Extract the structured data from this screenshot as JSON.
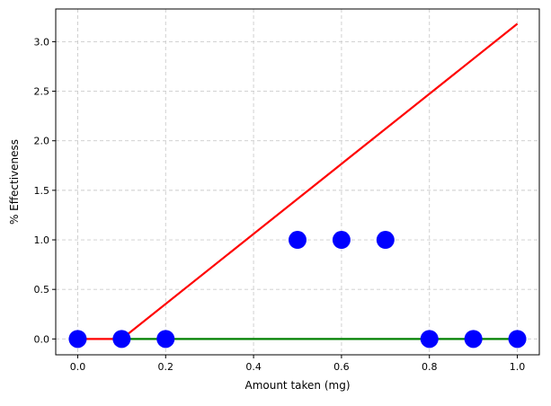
{
  "chart_data": {
    "type": "scatter",
    "title": "",
    "xlabel": "Amount taken (mg)",
    "ylabel": "% Effectiveness",
    "xlim": [
      -0.05,
      1.05
    ],
    "ylim": [
      -0.16,
      3.33
    ],
    "xticks": [
      0.0,
      0.2,
      0.4,
      0.6,
      0.8,
      1.0
    ],
    "xtick_labels": [
      "0.0",
      "0.2",
      "0.4",
      "0.6",
      "0.8",
      "1.0"
    ],
    "yticks": [
      0.0,
      0.5,
      1.0,
      1.5,
      2.0,
      2.5,
      3.0
    ],
    "ytick_labels": [
      "0.0",
      "0.5",
      "1.0",
      "1.5",
      "2.0",
      "2.5",
      "3.0"
    ],
    "grid": true,
    "legend": "none",
    "points": {
      "x": [
        0.0,
        0.1,
        0.2,
        0.5,
        0.6,
        0.7,
        0.8,
        0.9,
        1.0
      ],
      "y": [
        0,
        0,
        0,
        1,
        1,
        1,
        0,
        0,
        0
      ],
      "color": "#0000ff"
    },
    "lines": [
      {
        "color": "#ff0000",
        "x": [
          0.0,
          0.1,
          1.0
        ],
        "y": [
          0.0,
          0.0,
          3.18
        ]
      },
      {
        "color": "#008000",
        "x": [
          0.1,
          1.0
        ],
        "y": [
          0.0,
          0.0
        ]
      }
    ]
  }
}
